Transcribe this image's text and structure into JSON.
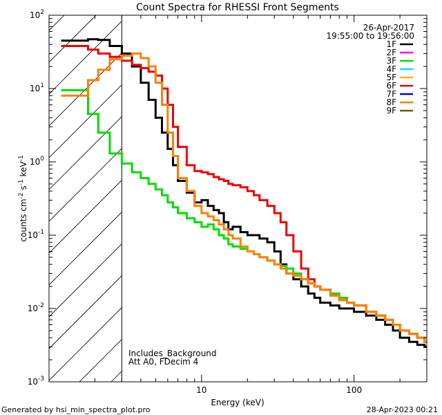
{
  "chart_data": {
    "type": "line",
    "title": "Count Spectra for RHESSI Front Segments",
    "xlabel": "Energy (keV)",
    "ylabel": "counts cm",
    "ylabel_sup1": "-2",
    "ylabel_mid": " s",
    "ylabel_sup2": "-1",
    "ylabel_end": " keV",
    "ylabel_sup3": "-1",
    "xscale": "log",
    "yscale": "log",
    "xlim": [
      1.0,
      300
    ],
    "ylim": [
      0.001,
      100
    ],
    "xticks": [
      {
        "value": 10,
        "label": "10"
      },
      {
        "value": 100,
        "label": "100"
      }
    ],
    "yticks": [
      {
        "value": 0.001,
        "base": "10",
        "exp": "-3"
      },
      {
        "value": 0.01,
        "base": "10",
        "exp": "-2"
      },
      {
        "value": 0.1,
        "base": "10",
        "exp": "-1"
      },
      {
        "value": 1,
        "base": "10",
        "exp": "0"
      },
      {
        "value": 10,
        "base": "10",
        "exp": "1"
      },
      {
        "value": 100,
        "base": "10",
        "exp": "2"
      }
    ],
    "date": "26-Apr-2017",
    "time_range": "19:55:00 to 19:56:00",
    "threshold_energy": 3.0,
    "annotations": [
      "Includes_Background",
      "Att A0, FDecim 4"
    ],
    "legend": [
      {
        "name": "1F",
        "color": "#000000"
      },
      {
        "name": "2F",
        "color": "#ff00ff"
      },
      {
        "name": "3F",
        "color": "#00dd00"
      },
      {
        "name": "4F",
        "color": "#00e5ee"
      },
      {
        "name": "5F",
        "color": "#ffb300"
      },
      {
        "name": "6F",
        "color": "#ee0000"
      },
      {
        "name": "7F",
        "color": "#0000cc"
      },
      {
        "name": "8F",
        "color": "#ff7f00"
      },
      {
        "name": "9F",
        "color": "#6b5a00"
      }
    ],
    "series": [
      {
        "name": "1F",
        "color": "#000000",
        "x": [
          1.2,
          1.5,
          1.8,
          2.1,
          2.5,
          3.0,
          3.5,
          4.0,
          4.5,
          5.0,
          5.5,
          6.0,
          6.5,
          7.0,
          8.0,
          9.0,
          10.0,
          11.0,
          12.0,
          13.0,
          14.0,
          15.0,
          16.0,
          18.0,
          20.0,
          22.0,
          24.0,
          27.0,
          30.0,
          33.0,
          36.0,
          40.0,
          45.0,
          50.0,
          55.0,
          60.0,
          70.0,
          80.0,
          90.0,
          100.0,
          120.0,
          140.0,
          160.0,
          180.0,
          200.0,
          230.0,
          260.0,
          290.0
        ],
        "values": [
          45,
          45,
          47,
          46,
          38,
          30,
          20,
          12,
          7,
          4,
          2.5,
          1.5,
          0.9,
          0.55,
          0.38,
          0.28,
          0.3,
          0.25,
          0.22,
          0.2,
          0.15,
          0.12,
          0.13,
          0.11,
          0.1,
          0.1,
          0.09,
          0.08,
          0.06,
          0.04,
          0.03,
          0.025,
          0.02,
          0.016,
          0.014,
          0.012,
          0.011,
          0.01,
          0.01,
          0.009,
          0.008,
          0.007,
          0.006,
          0.005,
          0.004,
          0.0035,
          0.0032,
          0.003
        ]
      },
      {
        "name": "3F",
        "color": "#00dd00",
        "x": [
          1.2,
          1.5,
          1.8,
          2.1,
          2.5,
          3.0,
          3.5,
          4.0,
          4.5,
          5.0,
          5.5,
          6.0,
          6.5,
          7.0,
          8.0,
          9.0,
          10.0,
          11.0,
          12.0,
          13.0,
          14.0,
          15.0,
          16.0,
          18.0,
          20.0,
          22.0,
          24.0,
          27.0,
          30.0,
          33.0,
          36.0,
          40.0,
          45.0,
          50.0,
          55.0,
          60.0,
          70.0,
          80.0,
          90.0,
          100.0,
          120.0,
          140.0,
          160.0,
          180.0,
          200.0,
          230.0,
          260.0,
          290.0
        ],
        "values": [
          9.5,
          9.5,
          4.5,
          2.5,
          1.3,
          0.95,
          0.72,
          0.6,
          0.5,
          0.42,
          0.35,
          0.28,
          0.24,
          0.2,
          0.17,
          0.15,
          0.13,
          0.14,
          0.12,
          0.1,
          0.09,
          0.075,
          0.07,
          0.065,
          0.06,
          0.055,
          0.05,
          0.045,
          0.04,
          0.038,
          0.035,
          0.03,
          0.025,
          0.022,
          0.02,
          0.018,
          0.016,
          0.014,
          0.012,
          0.011,
          0.009,
          0.008,
          0.007,
          0.006,
          0.005,
          0.0045,
          0.004,
          0.0035
        ]
      },
      {
        "name": "6F",
        "color": "#ee0000",
        "x": [
          1.2,
          1.5,
          1.8,
          2.1,
          2.5,
          3.0,
          3.5,
          4.0,
          4.5,
          5.0,
          5.5,
          6.0,
          6.5,
          7.0,
          8.0,
          9.0,
          10.0,
          11.0,
          12.0,
          13.0,
          14.0,
          15.0,
          16.0,
          18.0,
          20.0,
          22.0,
          24.0,
          27.0,
          30.0,
          33.0,
          36.0,
          40.0,
          45.0,
          50.0,
          55.0,
          60.0,
          70.0,
          80.0,
          90.0,
          100.0,
          120.0,
          140.0,
          160.0,
          180.0,
          200.0,
          230.0,
          260.0,
          290.0
        ],
        "values": [
          38,
          38,
          34,
          30,
          27,
          24,
          21,
          19,
          17,
          15,
          10,
          6,
          3,
          1.6,
          0.9,
          0.75,
          0.72,
          0.68,
          0.62,
          0.58,
          0.55,
          0.5,
          0.48,
          0.45,
          0.4,
          0.35,
          0.3,
          0.25,
          0.2,
          0.15,
          0.1,
          0.06,
          0.035,
          0.025,
          0.02,
          0.018,
          0.015,
          0.013,
          0.012,
          0.011,
          0.009,
          0.008,
          0.007,
          0.006,
          0.005,
          0.0045,
          0.004,
          0.0035
        ]
      },
      {
        "name": "8F",
        "color": "#ff7f00",
        "x": [
          1.2,
          1.5,
          1.8,
          2.1,
          2.5,
          3.0,
          3.5,
          4.0,
          4.5,
          5.0,
          5.5,
          6.0,
          6.5,
          7.0,
          8.0,
          9.0,
          10.0,
          11.0,
          12.0,
          13.0,
          14.0,
          15.0,
          16.0,
          18.0,
          20.0,
          22.0,
          24.0,
          27.0,
          30.0,
          33.0,
          36.0,
          40.0,
          45.0,
          50.0,
          55.0,
          60.0,
          70.0,
          80.0,
          90.0,
          100.0,
          120.0,
          140.0,
          160.0,
          180.0,
          200.0,
          230.0,
          260.0,
          290.0
        ],
        "values": [
          8,
          8,
          13,
          18,
          25,
          28,
          30,
          26,
          20,
          12,
          6,
          2.5,
          1.2,
          0.6,
          0.4,
          0.25,
          0.2,
          0.18,
          0.16,
          0.14,
          0.12,
          0.1,
          0.09,
          0.07,
          0.06,
          0.055,
          0.05,
          0.045,
          0.04,
          0.035,
          0.03,
          0.028,
          0.025,
          0.022,
          0.02,
          0.018,
          0.015,
          0.013,
          0.012,
          0.011,
          0.009,
          0.008,
          0.007,
          0.006,
          0.005,
          0.0045,
          0.004,
          0.0035
        ]
      }
    ]
  },
  "footer": {
    "left": "Generated by hsi_min_spectra_plot.pro",
    "right": "28-Apr-2023 00:21"
  }
}
